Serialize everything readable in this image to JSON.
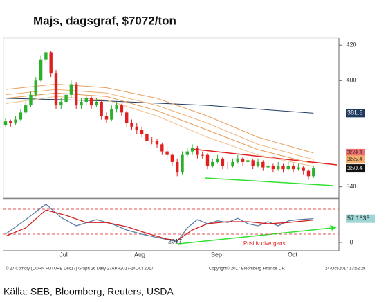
{
  "chart_data": {
    "type": "candlestick",
    "title": "Majs, dagsgraf, $7072/ton",
    "ylim": [
      334,
      424
    ],
    "yticks": [
      340,
      400,
      420
    ],
    "candles": [
      [
        375,
        379,
        374,
        377
      ],
      [
        377,
        378,
        374,
        376
      ],
      [
        376,
        380,
        375,
        378
      ],
      [
        378,
        384,
        377,
        382
      ],
      [
        382,
        388,
        381,
        386
      ],
      [
        386,
        394,
        385,
        392
      ],
      [
        392,
        402,
        391,
        400
      ],
      [
        400,
        414,
        399,
        412
      ],
      [
        412,
        418,
        410,
        416
      ],
      [
        416,
        417,
        402,
        404
      ],
      [
        404,
        406,
        384,
        386
      ],
      [
        386,
        390,
        384,
        388
      ],
      [
        388,
        394,
        386,
        392
      ],
      [
        392,
        400,
        390,
        398
      ],
      [
        398,
        399,
        384,
        386
      ],
      [
        386,
        390,
        384,
        388
      ],
      [
        388,
        392,
        386,
        390
      ],
      [
        390,
        391,
        384,
        386
      ],
      [
        386,
        390,
        385,
        388
      ],
      [
        388,
        389,
        378,
        380
      ],
      [
        380,
        382,
        376,
        378
      ],
      [
        378,
        386,
        377,
        384
      ],
      [
        384,
        388,
        382,
        386
      ],
      [
        386,
        387,
        380,
        382
      ],
      [
        382,
        383,
        374,
        376
      ],
      [
        376,
        378,
        372,
        374
      ],
      [
        374,
        376,
        370,
        372
      ],
      [
        372,
        374,
        368,
        370
      ],
      [
        370,
        371,
        364,
        366
      ],
      [
        366,
        368,
        364,
        366
      ],
      [
        366,
        367,
        362,
        364
      ],
      [
        364,
        365,
        358,
        360
      ],
      [
        360,
        362,
        356,
        358
      ],
      [
        358,
        359,
        352,
        354
      ],
      [
        354,
        356,
        346,
        348
      ],
      [
        348,
        360,
        347,
        358
      ],
      [
        358,
        362,
        357,
        360
      ],
      [
        360,
        364,
        358,
        362
      ],
      [
        362,
        363,
        356,
        358
      ],
      [
        358,
        360,
        356,
        358
      ],
      [
        358,
        359,
        350,
        352
      ],
      [
        352,
        356,
        351,
        354
      ],
      [
        354,
        358,
        353,
        356
      ],
      [
        356,
        357,
        350,
        352
      ],
      [
        352,
        354,
        350,
        352
      ],
      [
        352,
        356,
        351,
        354
      ],
      [
        354,
        358,
        353,
        356
      ],
      [
        356,
        357,
        352,
        354
      ],
      [
        354,
        357,
        353,
        355
      ],
      [
        355,
        356,
        350,
        352
      ],
      [
        352,
        356,
        351,
        354
      ],
      [
        354,
        355,
        349,
        351
      ],
      [
        351,
        354,
        350,
        352
      ],
      [
        352,
        353,
        348,
        350
      ],
      [
        350,
        354,
        349,
        352
      ],
      [
        352,
        353,
        348,
        350
      ],
      [
        350,
        354,
        349,
        352
      ],
      [
        352,
        353,
        348,
        350
      ],
      [
        350,
        353,
        349,
        351
      ],
      [
        351,
        352,
        347,
        349
      ],
      [
        349,
        350,
        344,
        346
      ],
      [
        346,
        352,
        345,
        350.4
      ]
    ],
    "last_label": "350.4",
    "series": [
      {
        "color": "#1f3a5f",
        "x": [
          0,
          20,
          40,
          61
        ],
        "values": [
          390,
          388.5,
          386,
          381.6
        ],
        "value_label": "381.6"
      },
      {
        "color": "#e8a060",
        "x": [
          0,
          10,
          20,
          30,
          40,
          50,
          61
        ],
        "values": [
          395,
          398,
          396,
          390,
          380,
          368,
          359.1
        ],
        "value_label": "359.1"
      },
      {
        "color": "#f0b070",
        "x": [
          0,
          10,
          20,
          30,
          40,
          50,
          61
        ],
        "values": [
          392,
          395,
          393,
          386,
          376,
          364,
          355.4
        ],
        "value_label": "355.4"
      },
      {
        "color": "#e89850",
        "x": [
          0,
          10,
          20,
          30,
          40,
          50,
          61
        ],
        "values": [
          390,
          393,
          391,
          383,
          372,
          361,
          353
        ]
      },
      {
        "color": "#f2c090",
        "x": [
          0,
          10,
          20,
          30,
          40,
          50,
          61
        ],
        "values": [
          387,
          391,
          389,
          380,
          368,
          358,
          351.5
        ]
      }
    ],
    "lower": {
      "ylim": [
        -20,
        100
      ],
      "yticks": [
        0
      ],
      "levels": [
        80,
        20
      ],
      "series": [
        {
          "color": "#5b7fa8",
          "x": [
            0,
            4,
            8,
            11,
            14,
            18,
            21,
            24,
            27,
            30,
            34,
            36,
            38,
            40,
            42,
            44,
            46,
            48,
            50,
            52,
            54,
            56,
            58,
            61
          ],
          "values": [
            20,
            55,
            92,
            60,
            40,
            55,
            45,
            30,
            20,
            12,
            2,
            35,
            55,
            45,
            52,
            48,
            58,
            45,
            40,
            50,
            40,
            52,
            55,
            57.1635
          ],
          "value_label": "57.1635"
        },
        {
          "color": "#d02020",
          "x": [
            0,
            4,
            8,
            12,
            16,
            20,
            24,
            28,
            32,
            34,
            37,
            40,
            44,
            48,
            52,
            56,
            61
          ],
          "values": [
            15,
            35,
            78,
            65,
            48,
            48,
            38,
            22,
            8,
            5,
            30,
            45,
            50,
            50,
            45,
            48,
            54
          ]
        }
      ]
    },
    "x_labels": [
      "Jul",
      "Aug",
      "Sep",
      "Oct"
    ],
    "year_label": "2017",
    "annotation": "Positiv divergens",
    "footer_left": "© 27 Comdty (CORN FUTURE    Dec17) Graph 26   Daily 27APR2017-24OCT2017",
    "footer_mid": "Copyright© 2017 Bloomberg Finance L.P.",
    "footer_right": "24-Oct-2017 13:52:28",
    "source": "Källa: SEB, Bloomberg, Reuters, USDA"
  }
}
